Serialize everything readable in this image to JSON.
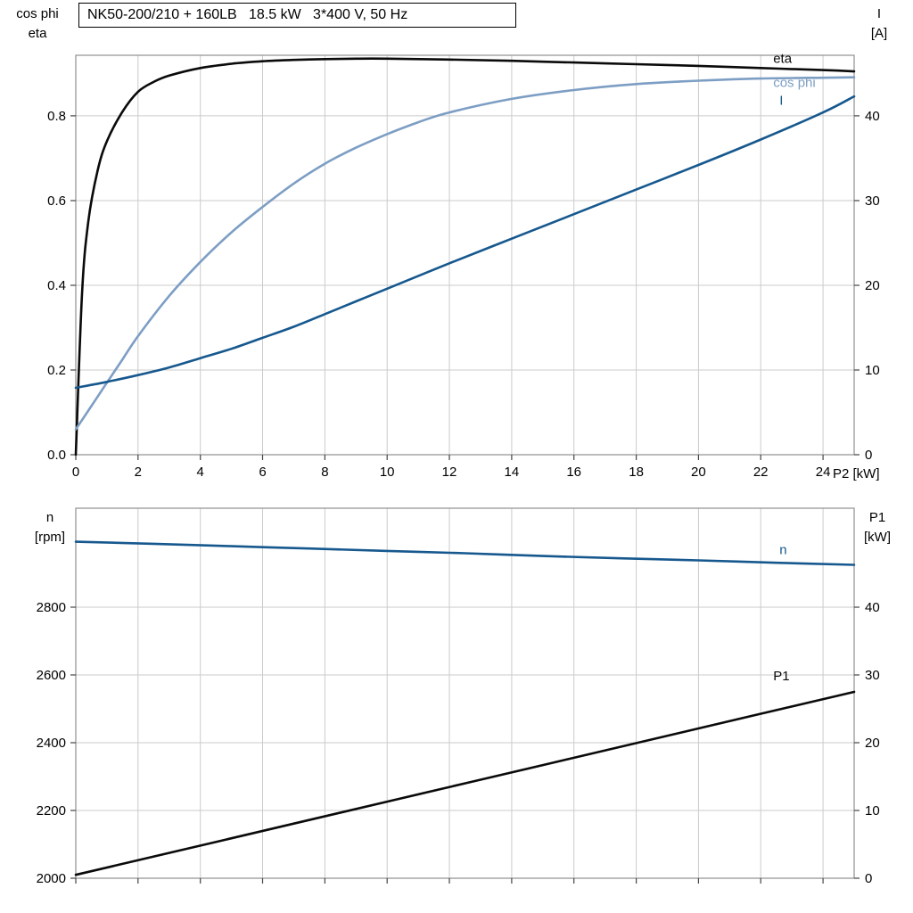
{
  "title": "NK50-200/210 + 160LB   18.5 kW   3*400 V, 50 Hz",
  "colors": {
    "grid": "#cbcbcb",
    "frame": "#909090",
    "tick": "#444444",
    "text": "#000000",
    "dark_blue": "#16588e",
    "light_blue": "#7d9ec4",
    "black": "#0a0a0a"
  },
  "chart_data": [
    {
      "type": "line",
      "title": "NK50-200/210 + 160LB   18.5 kW   3*400 V, 50 Hz",
      "xlabel": "P2 [kW]",
      "left_axis_label": [
        "cos phi",
        "eta"
      ],
      "right_axis_label": [
        "I",
        "[A]"
      ],
      "xlim": [
        0,
        25
      ],
      "left_ylim": [
        0,
        0.943
      ],
      "right_ylim": [
        0,
        47.15
      ],
      "grid": true,
      "legend_position": "inline-right",
      "xticks": [
        0,
        2,
        4,
        6,
        8,
        10,
        12,
        14,
        16,
        18,
        20,
        22,
        24
      ],
      "xtick_labels": [
        "0",
        "2",
        "4",
        "6",
        "8",
        "10",
        "12",
        "14",
        "16",
        "18",
        "20",
        "22",
        "24"
      ],
      "left_yticks": [
        0,
        0.2,
        0.4,
        0.6,
        0.8
      ],
      "left_ytick_labels": [
        "0.0",
        "0.2",
        "0.4",
        "0.6",
        "0.8"
      ],
      "right_yticks": [
        0,
        10,
        20,
        30,
        40
      ],
      "right_ytick_labels": [
        "0",
        "10",
        "20",
        "30",
        "40"
      ],
      "series": [
        {
          "name": "eta",
          "axis": "left",
          "color": "#0a0a0a",
          "points": [
            [
              0,
              0
            ],
            [
              0.2,
              0.38
            ],
            [
              0.4,
              0.55
            ],
            [
              0.7,
              0.67
            ],
            [
              1,
              0.74
            ],
            [
              1.5,
              0.81
            ],
            [
              2,
              0.857
            ],
            [
              2.5,
              0.88
            ],
            [
              3,
              0.895
            ],
            [
              4,
              0.913
            ],
            [
              5,
              0.923
            ],
            [
              6,
              0.929
            ],
            [
              7,
              0.932
            ],
            [
              8,
              0.934
            ],
            [
              9,
              0.935
            ],
            [
              10,
              0.935
            ],
            [
              12,
              0.933
            ],
            [
              14,
              0.93
            ],
            [
              16,
              0.926
            ],
            [
              18,
              0.922
            ],
            [
              20,
              0.918
            ],
            [
              22,
              0.913
            ],
            [
              24,
              0.908
            ],
            [
              25,
              0.905
            ]
          ]
        },
        {
          "name": "cos phi",
          "axis": "left",
          "color": "#7d9ec4",
          "points": [
            [
              0,
              0.06
            ],
            [
              0.5,
              0.115
            ],
            [
              1,
              0.17
            ],
            [
              1.5,
              0.225
            ],
            [
              2,
              0.28
            ],
            [
              3,
              0.375
            ],
            [
              4,
              0.455
            ],
            [
              5,
              0.525
            ],
            [
              6,
              0.585
            ],
            [
              7,
              0.64
            ],
            [
              8,
              0.687
            ],
            [
              9,
              0.725
            ],
            [
              10,
              0.757
            ],
            [
              11,
              0.785
            ],
            [
              12,
              0.808
            ],
            [
              14,
              0.84
            ],
            [
              16,
              0.861
            ],
            [
              18,
              0.875
            ],
            [
              20,
              0.883
            ],
            [
              22,
              0.888
            ],
            [
              24,
              0.89
            ],
            [
              25,
              0.891
            ]
          ]
        },
        {
          "name": "I",
          "axis": "right",
          "color": "#16588e",
          "points": [
            [
              0,
              7.9
            ],
            [
              1,
              8.6
            ],
            [
              2,
              9.4
            ],
            [
              3,
              10.3
            ],
            [
              4,
              11.4
            ],
            [
              5,
              12.5
            ],
            [
              6,
              13.8
            ],
            [
              7,
              15.1
            ],
            [
              8,
              16.6
            ],
            [
              9,
              18.1
            ],
            [
              10,
              19.6
            ],
            [
              12,
              22.6
            ],
            [
              14,
              25.5
            ],
            [
              16,
              28.4
            ],
            [
              18,
              31.3
            ],
            [
              20,
              34.2
            ],
            [
              22,
              37.2
            ],
            [
              24,
              40.4
            ],
            [
              25,
              42.3
            ]
          ]
        }
      ],
      "annotations": [
        {
          "text": "eta",
          "x": 22.4,
          "y": 0.925,
          "axis": "left",
          "color": "#0a0a0a"
        },
        {
          "text": "cos phi",
          "x": 22.4,
          "y": 0.868,
          "axis": "left",
          "color": "#7d9ec4"
        },
        {
          "text": "I",
          "x": 22.6,
          "y": 41.3,
          "axis": "right",
          "color": "#16588e"
        }
      ]
    },
    {
      "type": "line",
      "title": "",
      "xlabel": "",
      "left_axis_label": [
        "n",
        "[rpm]"
      ],
      "right_axis_label": [
        "P1",
        "[kW]"
      ],
      "xlim": [
        0,
        25
      ],
      "left_ylim": [
        2000,
        3092
      ],
      "right_ylim": [
        0,
        54.6
      ],
      "grid": true,
      "legend_position": "inline-right",
      "xticks": [
        0,
        2,
        4,
        6,
        8,
        10,
        12,
        14,
        16,
        18,
        20,
        22,
        24
      ],
      "xtick_labels": [],
      "left_yticks": [
        2000,
        2200,
        2400,
        2600,
        2800
      ],
      "left_ytick_labels": [
        "2000",
        "2200",
        "2400",
        "2600",
        "2800"
      ],
      "right_yticks": [
        0,
        10,
        20,
        30,
        40
      ],
      "right_ytick_labels": [
        "0",
        "10",
        "20",
        "30",
        "40"
      ],
      "series": [
        {
          "name": "n",
          "axis": "left",
          "color": "#16588e",
          "points": [
            [
              0,
              2993
            ],
            [
              2.5,
              2987
            ],
            [
              5,
              2980
            ],
            [
              7.5,
              2973
            ],
            [
              10,
              2966
            ],
            [
              12.5,
              2959
            ],
            [
              15,
              2951
            ],
            [
              17.5,
              2944
            ],
            [
              20,
              2938
            ],
            [
              22.5,
              2931
            ],
            [
              25,
              2925
            ]
          ]
        },
        {
          "name": "P1",
          "axis": "right",
          "color": "#0a0a0a",
          "points": [
            [
              0,
              0.5
            ],
            [
              5,
              5.9
            ],
            [
              10,
              11.3
            ],
            [
              15,
              16.7
            ],
            [
              20,
              22.1
            ],
            [
              25,
              27.5
            ]
          ]
        }
      ],
      "annotations": [
        {
          "text": "n",
          "x": 22.6,
          "y": 2957,
          "axis": "left",
          "color": "#16588e"
        },
        {
          "text": "P1",
          "x": 22.4,
          "y": 29.2,
          "axis": "right",
          "color": "#0a0a0a"
        }
      ]
    }
  ]
}
